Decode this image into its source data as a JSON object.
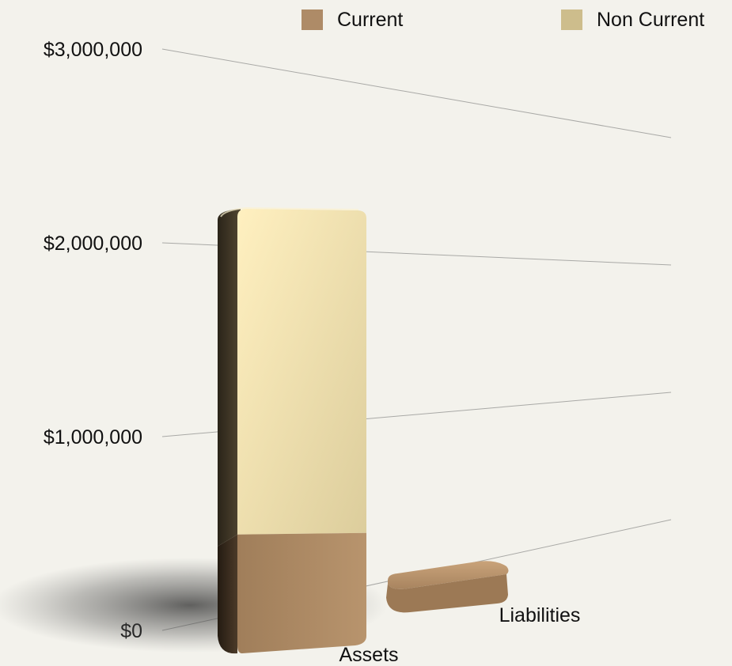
{
  "chart_data": {
    "type": "bar",
    "stacked": true,
    "three_d": true,
    "categories": [
      "Assets",
      "Liabilities"
    ],
    "series": [
      {
        "name": "Current",
        "values": [
          500000,
          60000
        ],
        "color": "#ae8b67"
      },
      {
        "name": "Non Current",
        "values": [
          1650000,
          0
        ],
        "color": "#cdbd8c"
      }
    ],
    "y_ticks": [
      0,
      1000000,
      2000000,
      3000000
    ],
    "y_tick_labels": [
      "$0",
      "$1,000,000",
      "$2,000,000",
      "$3,000,000"
    ],
    "ylim": [
      0,
      3000000
    ],
    "grid": true,
    "legend": {
      "placement": "top-right"
    },
    "title": "",
    "xlabel": "",
    "ylabel": ""
  }
}
